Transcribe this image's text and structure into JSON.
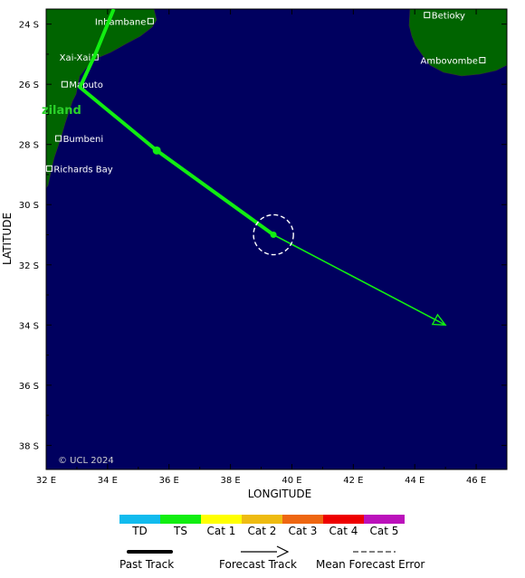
{
  "map": {
    "x_axis_title": "LONGITUDE",
    "y_axis_title": "LATITUDE",
    "lon_ticks": [
      "32 E",
      "34 E",
      "36 E",
      "38 E",
      "40 E",
      "42 E",
      "44 E",
      "46 E"
    ],
    "lat_ticks": [
      "24 S",
      "26 S",
      "28 S",
      "30 S",
      "32 S",
      "34 S",
      "36 S",
      "38 S"
    ],
    "lon_range": [
      32,
      47.0
    ],
    "lat_range": [
      23.5,
      38.8
    ],
    "ocean_color": "#00005f",
    "land_color": "#006400",
    "copyright": "© UCL 2024",
    "region_label": "ziland",
    "places": [
      {
        "name": "Inhambane",
        "lon": 35.4,
        "lat": 23.9,
        "label_side": "left"
      },
      {
        "name": "Xai-Xai",
        "lon": 33.6,
        "lat": 25.1,
        "label_side": "left"
      },
      {
        "name": "Maputo",
        "lon": 32.6,
        "lat": 26.0,
        "label_side": "right"
      },
      {
        "name": "Bumbeni",
        "lon": 32.4,
        "lat": 27.8,
        "label_side": "right"
      },
      {
        "name": "Richards Bay",
        "lon": 32.1,
        "lat": 28.8,
        "label_side": "right"
      },
      {
        "name": "Betioky",
        "lon": 44.4,
        "lat": 23.7,
        "label_side": "right"
      },
      {
        "name": "Ambovombe",
        "lon": 46.2,
        "lat": 25.2,
        "label_side": "left"
      }
    ],
    "past_track": [
      [
        34.2,
        23.5
      ],
      [
        33.6,
        25.0
      ],
      [
        33.1,
        26.1
      ],
      [
        35.6,
        28.2
      ],
      [
        39.4,
        31.0
      ]
    ],
    "forecast_track": [
      [
        39.4,
        31.0
      ],
      [
        45.0,
        34.0
      ]
    ],
    "current_position": [
      39.4,
      31.0
    ],
    "past_marker": [
      35.6,
      28.2
    ],
    "error_radius_deg": 0.65,
    "track_color": "#11ee11"
  },
  "legend": {
    "categories": [
      {
        "label": "TD",
        "color": "#11bbee"
      },
      {
        "label": "TS",
        "color": "#11ee11"
      },
      {
        "label": "Cat 1",
        "color": "#ffff00"
      },
      {
        "label": "Cat 2",
        "color": "#eebb11"
      },
      {
        "label": "Cat 3",
        "color": "#ee6611"
      },
      {
        "label": "Cat 4",
        "color": "#ee0000"
      },
      {
        "label": "Cat 5",
        "color": "#bb11bb"
      }
    ],
    "past_track_label": "Past Track",
    "forecast_track_label": "Forecast Track",
    "mean_error_label": "Mean Forecast Error"
  }
}
